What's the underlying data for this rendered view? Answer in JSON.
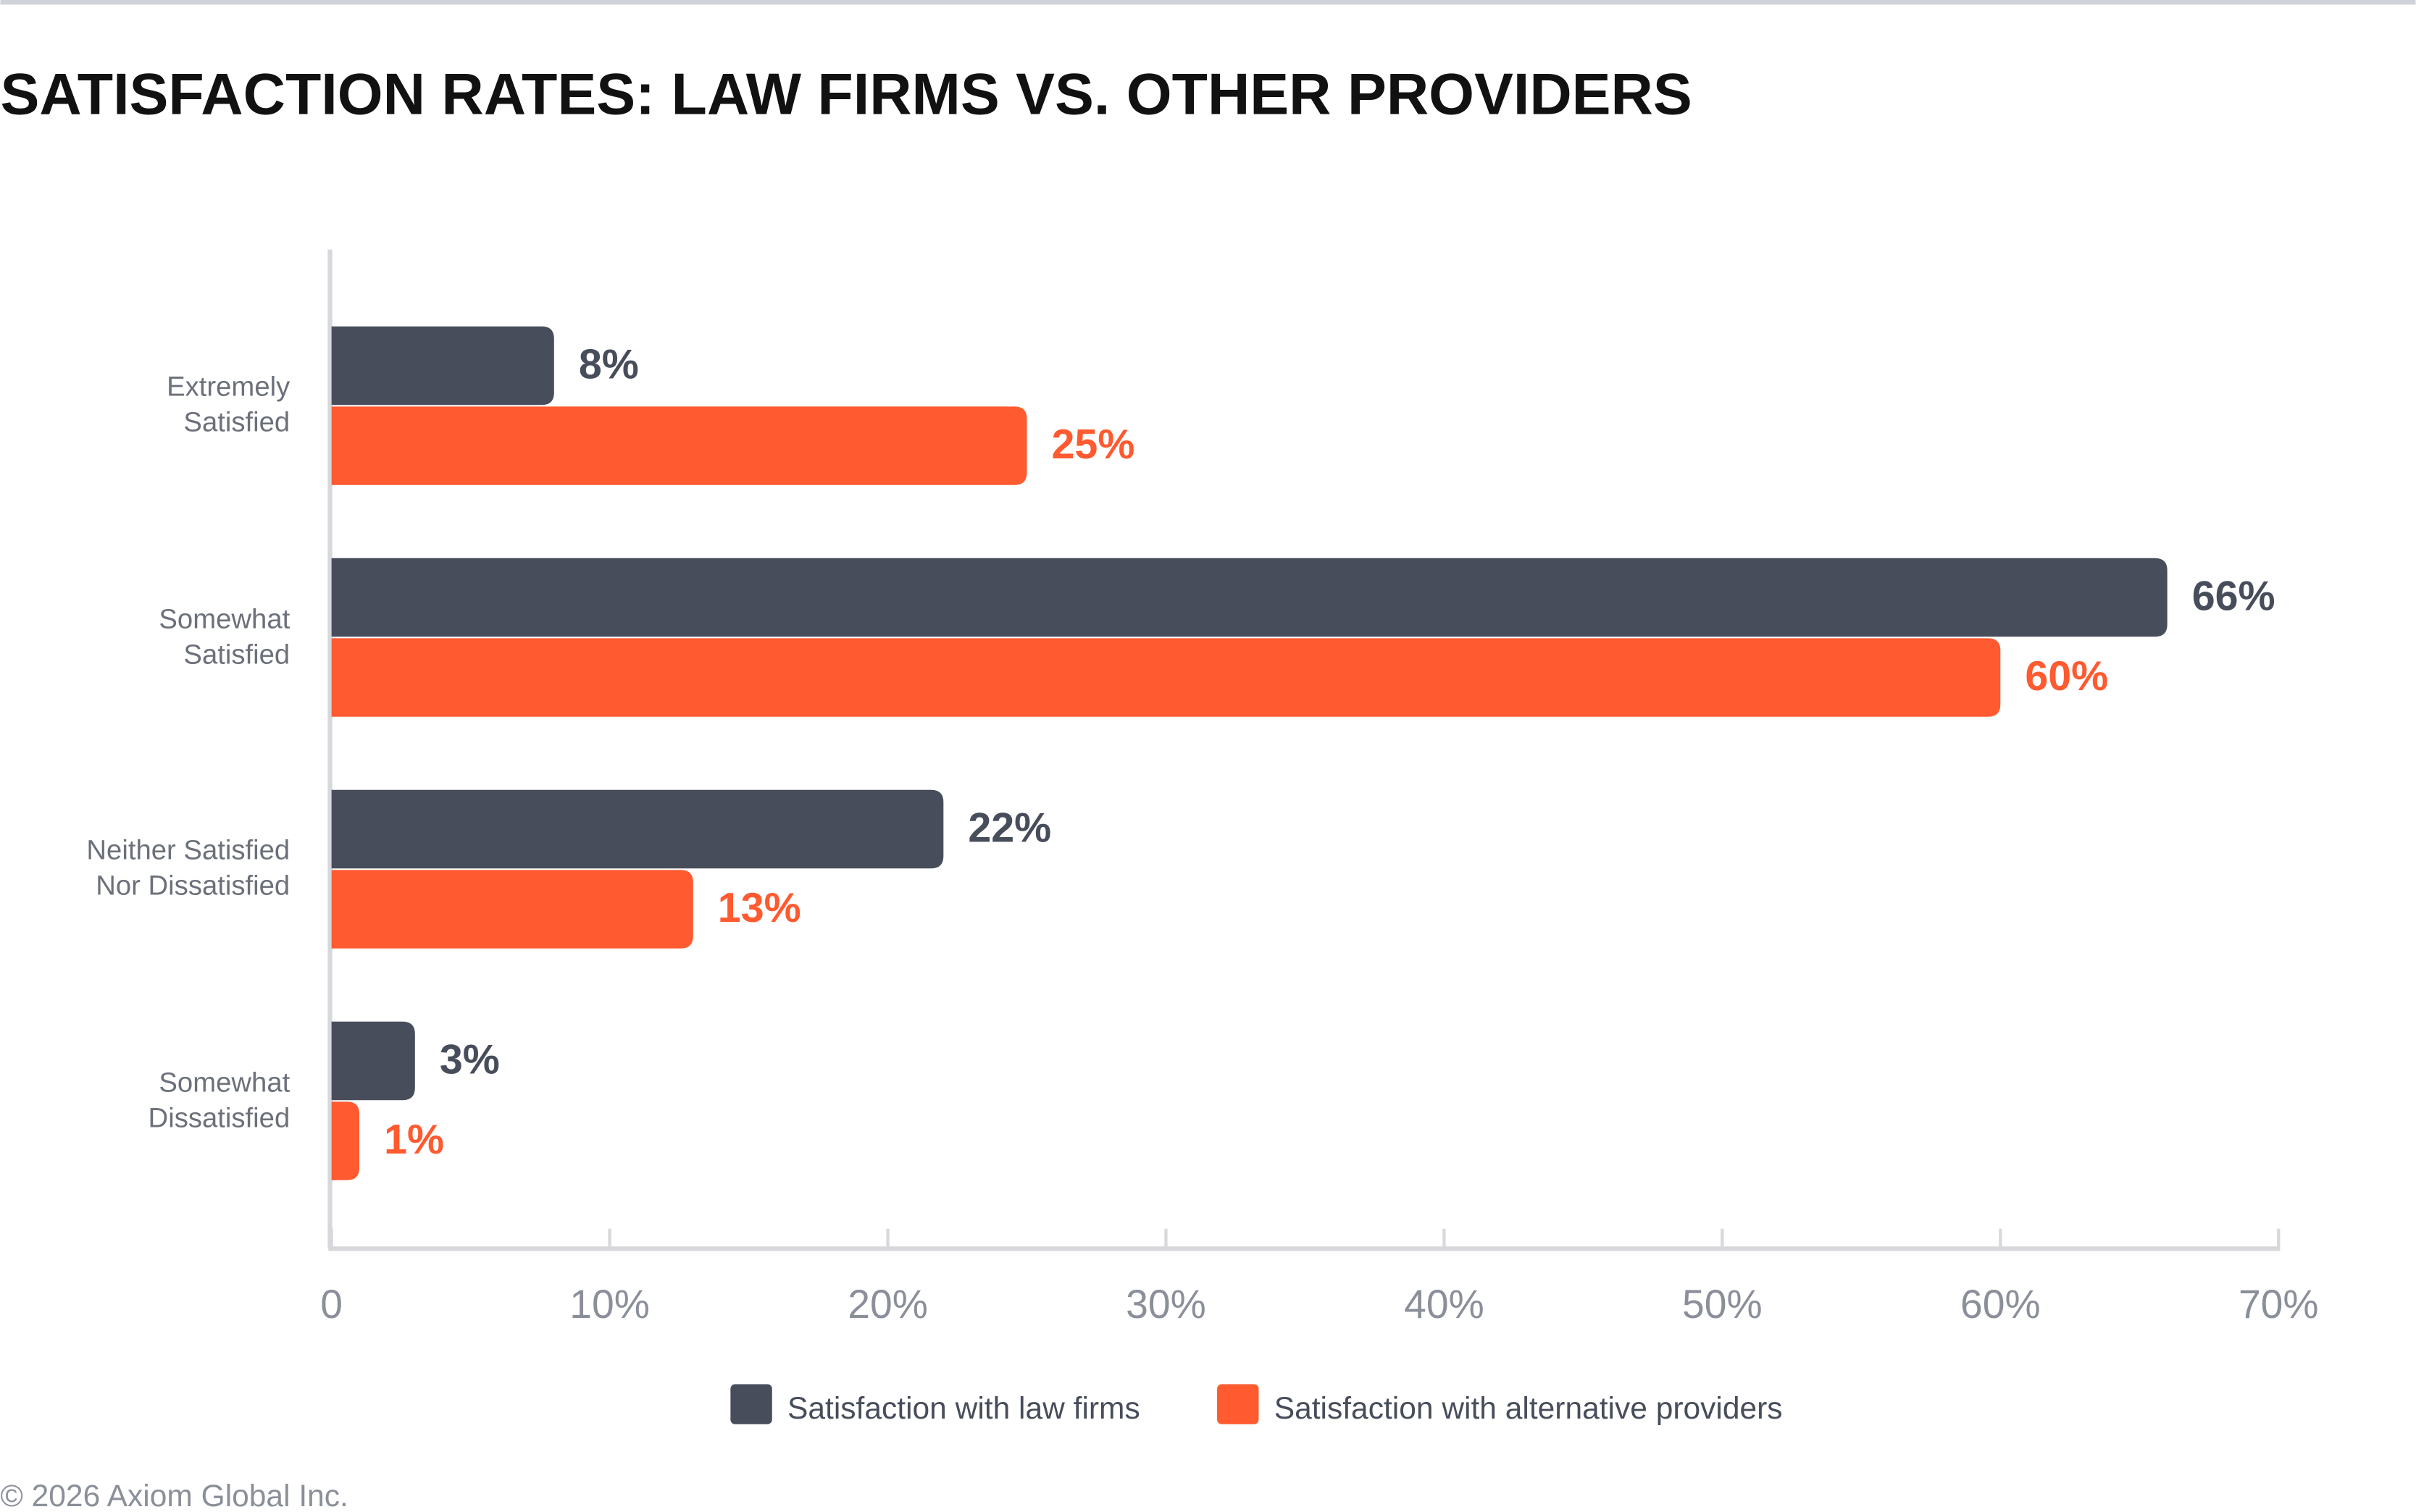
{
  "chart_data": {
    "type": "bar",
    "orientation": "horizontal",
    "title": "SATISFACTION RATES: LAW FIRMS VS. OTHER PROVIDERS",
    "categories": [
      "Extremely\nSatisfied",
      "Somewhat\nSatisfied",
      "Neither Satisfied\nNor Dissatisfied",
      "Somewhat\nDissatisfied"
    ],
    "series": [
      {
        "name": "Satisfaction with law firms",
        "color": "#474d5a",
        "values": [
          8,
          66,
          22,
          3
        ],
        "value_labels": [
          "8%",
          "66%",
          "22%",
          "3%"
        ]
      },
      {
        "name": "Satisfaction with alternative providers",
        "color": "#ff5a30",
        "values": [
          25,
          60,
          13,
          1
        ],
        "value_labels": [
          "25%",
          "60%",
          "13%",
          "1%"
        ]
      }
    ],
    "xlim": [
      0,
      70
    ],
    "xticks": [
      0,
      {
        "value": 10,
        "label": "10%"
      },
      {
        "value": 20,
        "label": "20%"
      },
      {
        "value": 30,
        "label": "30%"
      },
      {
        "value": 40,
        "label": "40%"
      },
      {
        "value": 50,
        "label": "50%"
      },
      {
        "value": 60,
        "label": "60%"
      },
      {
        "value": 70,
        "label": "70%"
      }
    ],
    "legend": "bottom",
    "footer": "© 2026 Axiom Global Inc."
  }
}
